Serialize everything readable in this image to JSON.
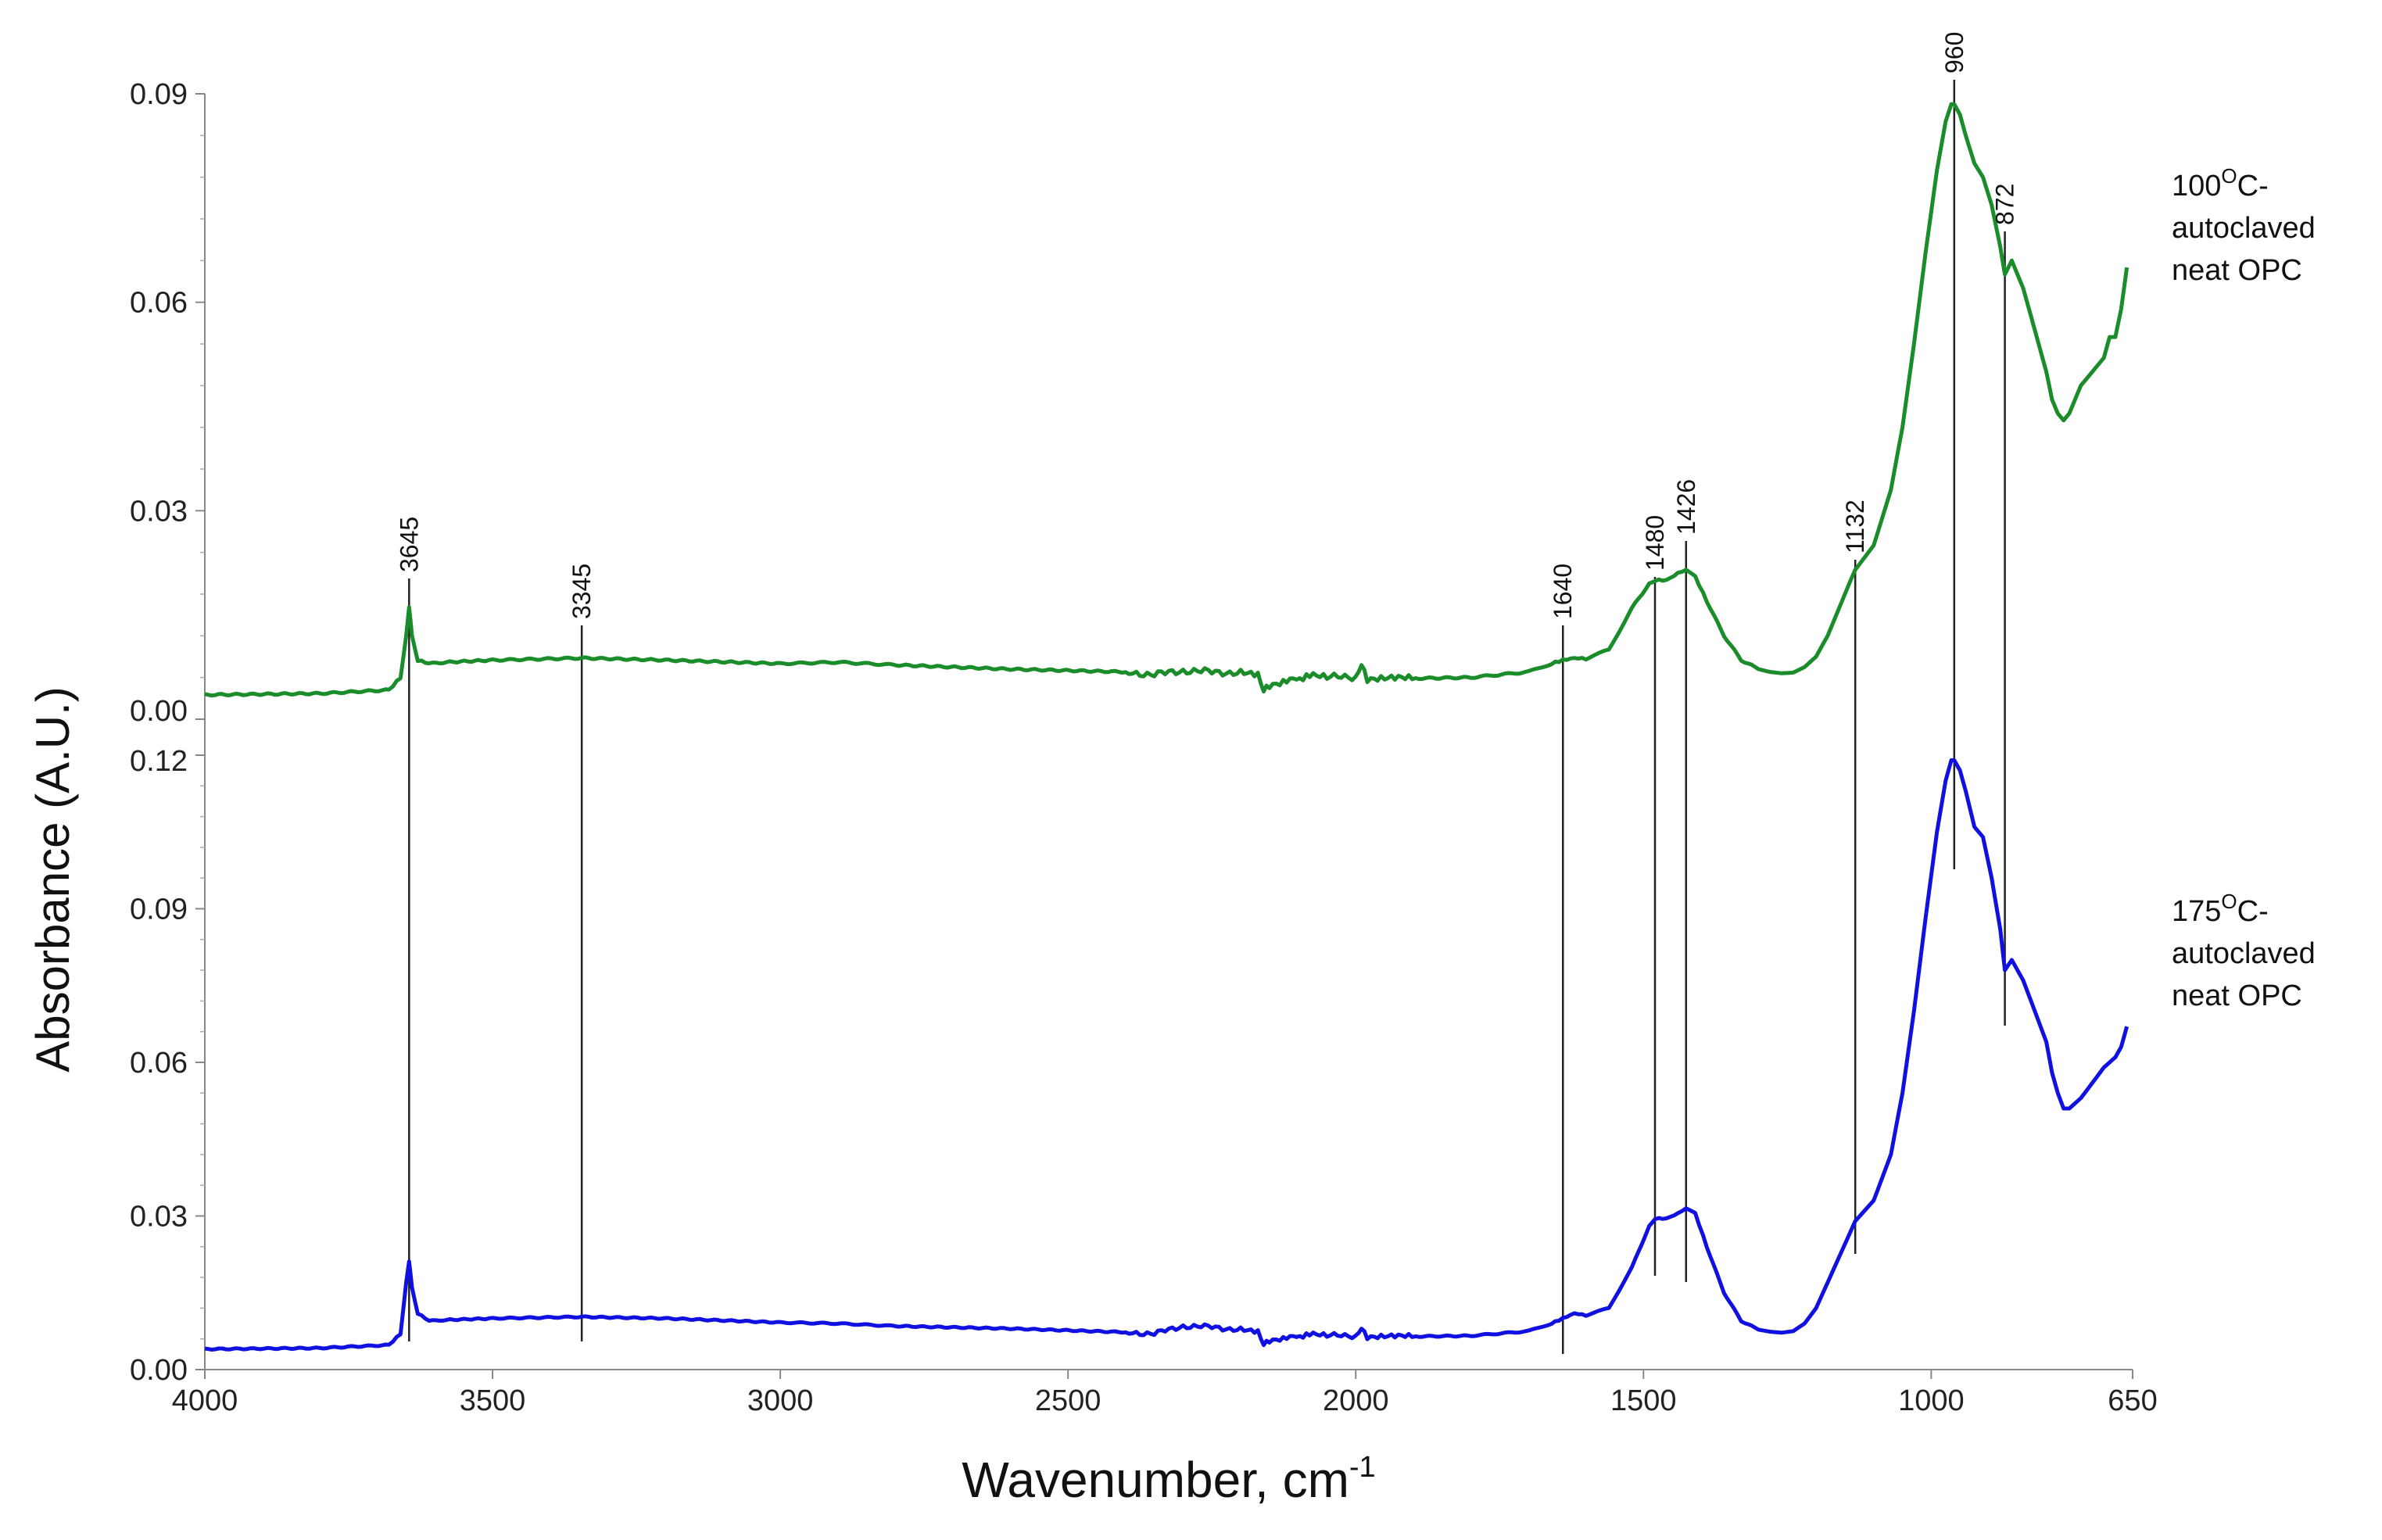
{
  "chart_data": {
    "type": "line",
    "xlabel": "Wavenumber, cm",
    "xlabel_sup": "-1",
    "ylabel": "Absorbance (A.U.)",
    "x_axis": {
      "range": [
        4000,
        650
      ],
      "reversed": true,
      "ticks": [
        4000,
        3500,
        3000,
        2500,
        2000,
        1500,
        1000,
        650
      ],
      "tick_labels": [
        "4000",
        "3500",
        "3000",
        "2500",
        "2000",
        "1500",
        "1000",
        "650"
      ]
    },
    "panels": [
      {
        "name": "top",
        "ylim": [
          0,
          0.09
        ],
        "ticks": [
          0,
          0.03,
          0.06,
          0.09
        ],
        "tick_labels": [
          "0.00",
          "0.03",
          "0.06",
          "0.09"
        ]
      },
      {
        "name": "bottom",
        "ylim": [
          0,
          0.12
        ],
        "ticks": [
          0,
          0.03,
          0.06,
          0.09,
          0.12
        ],
        "tick_labels": [
          "0.00",
          "0.03",
          "0.06",
          "0.09",
          "0.12"
        ]
      }
    ],
    "series": [
      {
        "label_lines": [
          "100",
          "C-",
          "autoclaved",
          "neat OPC"
        ],
        "label_sup": "O",
        "panel": "top",
        "color": "#1a8c2a",
        "x": [
          4000,
          3800,
          3680,
          3660,
          3650,
          3645,
          3640,
          3630,
          3610,
          3580,
          3500,
          3345,
          3200,
          3000,
          2900,
          2800,
          2600,
          2400,
          2350,
          2300,
          2250,
          2200,
          2170,
          2160,
          2150,
          2120,
          2080,
          2050,
          2000,
          1990,
          1980,
          1950,
          1800,
          1700,
          1660,
          1640,
          1620,
          1600,
          1560,
          1520,
          1490,
          1480,
          1460,
          1440,
          1426,
          1410,
          1390,
          1360,
          1330,
          1300,
          1280,
          1260,
          1240,
          1220,
          1200,
          1180,
          1160,
          1140,
          1132,
          1100,
          1070,
          1050,
          1030,
          1010,
          990,
          975,
          965,
          960,
          950,
          940,
          925,
          910,
          895,
          880,
          872,
          860,
          840,
          820,
          800,
          790,
          780,
          770,
          760,
          740,
          720,
          700,
          690,
          680,
          670,
          660
        ],
        "y": [
          0.0035,
          0.0037,
          0.0042,
          0.006,
          0.012,
          0.016,
          0.012,
          0.0085,
          0.008,
          0.0082,
          0.0085,
          0.0088,
          0.0085,
          0.008,
          0.0082,
          0.0078,
          0.0072,
          0.0068,
          0.0064,
          0.007,
          0.0068,
          0.0067,
          0.0066,
          0.004,
          0.005,
          0.0055,
          0.0062,
          0.006,
          0.0061,
          0.0078,
          0.0058,
          0.0058,
          0.006,
          0.0068,
          0.008,
          0.0085,
          0.0088,
          0.0087,
          0.01,
          0.016,
          0.0195,
          0.02,
          0.02,
          0.021,
          0.0215,
          0.0205,
          0.017,
          0.012,
          0.0085,
          0.0072,
          0.0068,
          0.0066,
          0.0067,
          0.0075,
          0.009,
          0.012,
          0.016,
          0.02,
          0.0215,
          0.025,
          0.033,
          0.042,
          0.054,
          0.067,
          0.079,
          0.086,
          0.0885,
          0.0885,
          0.087,
          0.084,
          0.08,
          0.078,
          0.074,
          0.068,
          0.064,
          0.066,
          0.062,
          0.056,
          0.05,
          0.046,
          0.044,
          0.043,
          0.044,
          0.048,
          0.05,
          0.052,
          0.055,
          0.055,
          0.059,
          0.065
        ]
      },
      {
        "label_lines": [
          "175",
          "C-",
          "autoclaved",
          "neat OPC"
        ],
        "label_sup": "O",
        "panel": "bottom",
        "color": "#1010e0",
        "x": [
          4000,
          3800,
          3680,
          3660,
          3650,
          3645,
          3640,
          3630,
          3610,
          3580,
          3500,
          3345,
          3200,
          3000,
          2900,
          2800,
          2600,
          2400,
          2350,
          2300,
          2250,
          2200,
          2170,
          2160,
          2150,
          2120,
          2080,
          2050,
          2000,
          1990,
          1980,
          1950,
          1800,
          1700,
          1660,
          1640,
          1620,
          1600,
          1560,
          1520,
          1490,
          1480,
          1460,
          1440,
          1426,
          1410,
          1390,
          1360,
          1330,
          1300,
          1280,
          1260,
          1240,
          1220,
          1200,
          1180,
          1160,
          1140,
          1132,
          1100,
          1070,
          1050,
          1030,
          1010,
          990,
          975,
          965,
          960,
          950,
          940,
          925,
          910,
          895,
          880,
          872,
          860,
          840,
          820,
          800,
          790,
          780,
          770,
          760,
          740,
          720,
          700,
          690,
          680,
          670,
          660
        ],
        "y": [
          0.004,
          0.0042,
          0.0048,
          0.007,
          0.017,
          0.021,
          0.016,
          0.011,
          0.0095,
          0.0097,
          0.01,
          0.0103,
          0.01,
          0.0092,
          0.009,
          0.0085,
          0.008,
          0.0073,
          0.007,
          0.0085,
          0.0083,
          0.0078,
          0.0076,
          0.0048,
          0.0058,
          0.0062,
          0.0068,
          0.0066,
          0.0066,
          0.008,
          0.0064,
          0.0064,
          0.0066,
          0.0075,
          0.009,
          0.01,
          0.011,
          0.0106,
          0.012,
          0.02,
          0.028,
          0.0295,
          0.0295,
          0.0305,
          0.0315,
          0.0305,
          0.024,
          0.015,
          0.0095,
          0.0078,
          0.0074,
          0.0072,
          0.0075,
          0.009,
          0.012,
          0.017,
          0.022,
          0.027,
          0.029,
          0.033,
          0.042,
          0.054,
          0.07,
          0.088,
          0.105,
          0.115,
          0.119,
          0.119,
          0.117,
          0.113,
          0.106,
          0.104,
          0.096,
          0.086,
          0.078,
          0.08,
          0.076,
          0.07,
          0.064,
          0.058,
          0.054,
          0.051,
          0.051,
          0.053,
          0.056,
          0.059,
          0.06,
          0.061,
          0.063,
          0.067
        ]
      }
    ],
    "peak_markers": [
      {
        "label": "3645",
        "x": 3645
      },
      {
        "label": "3345",
        "x": 3345
      },
      {
        "label": "1640",
        "x": 1640
      },
      {
        "label": "1480",
        "x": 1480
      },
      {
        "label": "1426",
        "x": 1426
      },
      {
        "label": "1132",
        "x": 1132
      },
      {
        "label": "960",
        "x": 960
      },
      {
        "label": "872",
        "x": 872
      }
    ]
  }
}
